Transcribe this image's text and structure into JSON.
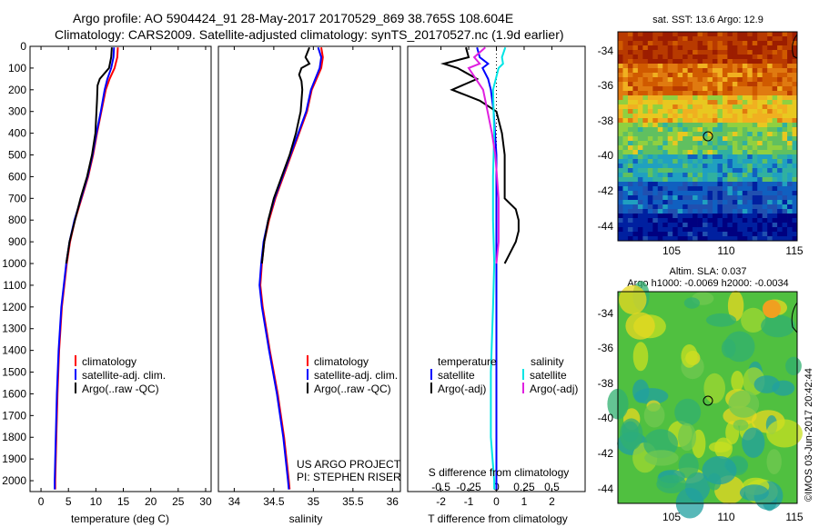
{
  "header": {
    "line1": "Argo profile: AO 5904424_91 28-May-2017 20170529_869 38.765S 108.604E",
    "line2": "Climatology: CARS2009. Satellite-adjusted climatology: synTS_20170527.nc (1.9d earlier)"
  },
  "footer_credit": "©IMOS 03-Jun-2017 20:42:44",
  "colors": {
    "clim": "#ff0000",
    "sat": "#0000ff",
    "argo": "#000000",
    "sal_sat": "#00e5e5",
    "sal_argo": "#e020e0"
  },
  "chart_data": [
    {
      "type": "line",
      "xlabel": "temperature (deg C)",
      "xlim": [
        -2,
        31
      ],
      "xticks": [
        "0",
        "5",
        "10",
        "15",
        "20",
        "25",
        "30"
      ],
      "ylim": [
        0,
        2050
      ],
      "yticks": [
        "0",
        "100",
        "200",
        "300",
        "400",
        "500",
        "600",
        "700",
        "800",
        "900",
        "1000",
        "1100",
        "1200",
        "1300",
        "1400",
        "1500",
        "1600",
        "1700",
        "1800",
        "1900",
        "2000"
      ],
      "legend": [
        "climatology",
        "satellite-adj. clim.",
        "Argo(..raw -QC)"
      ],
      "series": [
        {
          "name": "climatology",
          "depth": [
            5,
            50,
            100,
            150,
            200,
            300,
            400,
            500,
            600,
            700,
            800,
            900,
            1000,
            1200,
            1400,
            1600,
            1800,
            2000,
            2040
          ],
          "values": [
            14.0,
            13.9,
            13.4,
            12.5,
            11.8,
            11.0,
            10.2,
            9.5,
            8.6,
            7.4,
            6.2,
            5.3,
            4.7,
            3.8,
            3.3,
            3.0,
            2.8,
            2.6,
            2.6
          ]
        },
        {
          "name": "satellite-adj. clim.",
          "depth": [
            5,
            50,
            100,
            150,
            200,
            300,
            400,
            500,
            600,
            700,
            800,
            900,
            1000,
            1200,
            1400,
            1600,
            1800,
            2000,
            2040
          ],
          "values": [
            13.3,
            13.2,
            12.8,
            12.1,
            11.6,
            10.9,
            10.1,
            9.4,
            8.5,
            7.3,
            6.1,
            5.2,
            4.6,
            3.7,
            3.2,
            2.9,
            2.7,
            2.5,
            2.5
          ]
        },
        {
          "name": "Argo(..raw -QC)",
          "depth": [
            5,
            50,
            100,
            150,
            180,
            250,
            300,
            400,
            500,
            600,
            700,
            800,
            900,
            1000
          ],
          "values": [
            12.9,
            12.8,
            12.4,
            10.7,
            10.3,
            10.2,
            10.1,
            9.9,
            9.3,
            8.4,
            7.2,
            6.2,
            5.2,
            4.6
          ]
        }
      ]
    },
    {
      "type": "line",
      "xlabel": "salinity",
      "xlim": [
        33.8,
        36.1
      ],
      "xticks": [
        "34",
        "34.5",
        "35",
        "35.5",
        "36"
      ],
      "ylim": [
        0,
        2050
      ],
      "legend": [
        "climatology",
        "satellite-adj. clim.",
        "Argo(..raw -QC)"
      ],
      "annotations": [
        "US ARGO PROJECT",
        "PI: STEPHEN RISER"
      ],
      "series": [
        {
          "name": "climatology",
          "depth": [
            5,
            50,
            100,
            200,
            300,
            400,
            500,
            600,
            700,
            800,
            900,
            1000,
            1100,
            1200,
            1400,
            1600,
            1800,
            2000,
            2040
          ],
          "values": [
            35.1,
            35.12,
            35.1,
            34.98,
            34.92,
            34.82,
            34.72,
            34.62,
            34.52,
            34.44,
            34.38,
            34.35,
            34.33,
            34.36,
            34.45,
            34.55,
            34.63,
            34.69,
            34.7
          ]
        },
        {
          "name": "satellite-adj. clim.",
          "depth": [
            5,
            50,
            100,
            200,
            300,
            400,
            500,
            600,
            700,
            800,
            900,
            1000,
            1100,
            1200,
            1400,
            1600,
            1800,
            2000,
            2040
          ],
          "values": [
            35.06,
            35.1,
            35.08,
            34.97,
            34.91,
            34.81,
            34.71,
            34.61,
            34.51,
            34.43,
            34.37,
            34.34,
            34.32,
            34.35,
            34.44,
            34.54,
            34.62,
            34.68,
            34.69
          ]
        },
        {
          "name": "Argo(..raw -QC)",
          "depth": [
            5,
            50,
            80,
            100,
            130,
            160,
            200,
            300,
            400,
            500,
            600,
            700,
            800,
            900,
            1000
          ],
          "values": [
            34.95,
            34.9,
            34.95,
            34.85,
            34.82,
            34.85,
            34.86,
            34.84,
            34.78,
            34.7,
            34.6,
            34.5,
            34.43,
            34.38,
            34.35
          ]
        }
      ]
    },
    {
      "type": "line",
      "xlabel": "T difference from climatology",
      "xlabel2": "S difference from climatology",
      "xlim": [
        -3.2,
        3.2
      ],
      "xticks": [
        "-2",
        "-1",
        "0",
        "1",
        "2"
      ],
      "xticks_top": [
        "-0.5",
        "-0.25",
        "0",
        "0.25",
        "0.5"
      ],
      "ylim": [
        0,
        2050
      ],
      "legend_headers": [
        "temperature",
        "salinity"
      ],
      "legend": [
        "satellite",
        "Argo(-adj)",
        "satellite",
        "Argo(-adj)"
      ],
      "series": [
        {
          "name": "temperature satellite",
          "depth": [
            5,
            50,
            80,
            100,
            150,
            200,
            300,
            500,
            800,
            1000,
            1500,
            2000,
            2040
          ],
          "values": [
            -0.7,
            -0.6,
            -0.3,
            -0.5,
            -0.3,
            -0.2,
            -0.1,
            0.0,
            0.0,
            0.0,
            0.0,
            0.0,
            0.0
          ]
        },
        {
          "name": "temperature Argo(-adj)",
          "depth": [
            5,
            50,
            80,
            100,
            150,
            200,
            250,
            300,
            400,
            500,
            600,
            700,
            750,
            800,
            850,
            900,
            950,
            1000
          ],
          "values": [
            -1.1,
            -1.0,
            -1.9,
            -1.4,
            -0.7,
            -1.6,
            -0.6,
            0.0,
            0.2,
            0.3,
            0.3,
            0.3,
            0.7,
            0.8,
            0.8,
            0.7,
            0.5,
            0.3
          ]
        },
        {
          "name": "salinity satellite",
          "depth": [
            5,
            50,
            80,
            100,
            200,
            400,
            600,
            800,
            1000,
            1200,
            1500,
            1800,
            2000,
            2040
          ],
          "values": [
            0.08,
            0.05,
            0.06,
            0.02,
            -0.03,
            -0.02,
            -0.03,
            -0.03,
            -0.02,
            -0.03,
            -0.05,
            -0.05,
            -0.02,
            -0.02
          ]
        },
        {
          "name": "salinity Argo(-adj)",
          "depth": [
            5,
            50,
            80,
            100,
            200,
            300,
            400,
            500,
            700,
            900,
            1000
          ],
          "values": [
            -0.1,
            -0.2,
            -0.15,
            -0.25,
            -0.12,
            -0.08,
            -0.04,
            -0.01,
            0.02,
            0.02,
            0.0
          ]
        }
      ]
    },
    {
      "type": "heatmap",
      "title": "sat. SST: 13.6 Argo: 12.9",
      "xticks": [
        "105",
        "110",
        "115"
      ],
      "yticks": [
        "-34",
        "-36",
        "-38",
        "-40",
        "-42",
        "-44"
      ],
      "marker": {
        "lon": 108.6,
        "lat": -38.77
      }
    },
    {
      "type": "heatmap",
      "title": "Altim. SLA: 0.037",
      "subtitle": "Argo h1000: -0.0069 h2000: -0.0034",
      "xticks": [
        "105",
        "110",
        "115"
      ],
      "yticks": [
        "-34",
        "-36",
        "-38",
        "-40",
        "-42",
        "-44"
      ],
      "marker": {
        "lon": 108.6,
        "lat": -38.77
      }
    }
  ]
}
